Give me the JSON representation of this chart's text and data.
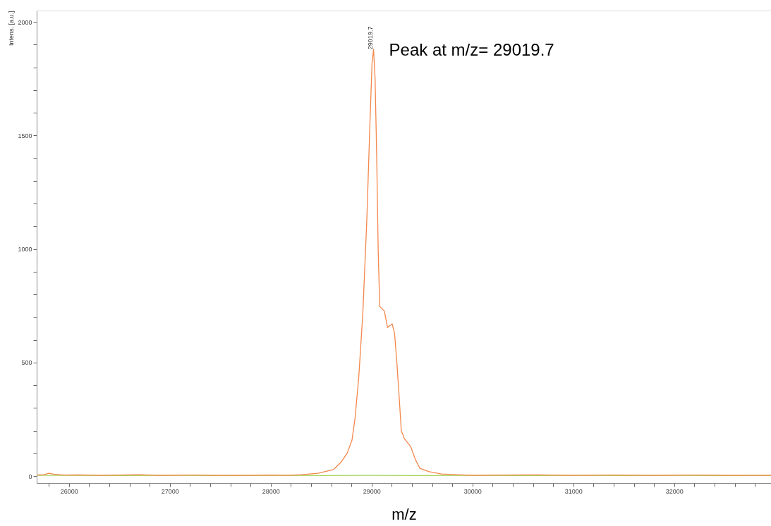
{
  "chart_data": {
    "type": "line",
    "xlabel": "m/z",
    "ylabel": "Intens. [a.u.]",
    "xlim": [
      25680,
      32960
    ],
    "ylim": [
      -31,
      2050
    ],
    "xticks": [
      {
        "value": 25800,
        "label": null
      },
      26000,
      {
        "value": 26200,
        "label": null
      },
      {
        "value": 26400,
        "label": null
      },
      {
        "value": 26600,
        "label": null
      },
      {
        "value": 26800,
        "label": null
      },
      27000,
      {
        "value": 27200,
        "label": null
      },
      {
        "value": 27400,
        "label": null
      },
      {
        "value": 27600,
        "label": null
      },
      {
        "value": 27800,
        "label": null
      },
      28000,
      {
        "value": 28200,
        "label": null
      },
      {
        "value": 28400,
        "label": null
      },
      {
        "value": 28600,
        "label": null
      },
      {
        "value": 28800,
        "label": null
      },
      29000,
      {
        "value": 29200,
        "label": null
      },
      {
        "value": 29400,
        "label": null
      },
      {
        "value": 29600,
        "label": null
      },
      {
        "value": 29800,
        "label": null
      },
      30000,
      {
        "value": 30200,
        "label": null
      },
      {
        "value": 30400,
        "label": null
      },
      {
        "value": 30600,
        "label": null
      },
      {
        "value": 30800,
        "label": null
      },
      31000,
      {
        "value": 31200,
        "label": null
      },
      {
        "value": 31400,
        "label": null
      },
      {
        "value": 31600,
        "label": null
      },
      {
        "value": 31800,
        "label": null
      },
      32000,
      {
        "value": 32200,
        "label": null
      },
      {
        "value": 32400,
        "label": null
      },
      {
        "value": 32600,
        "label": null
      },
      {
        "value": 32800,
        "label": null
      }
    ],
    "yticks": [
      0,
      {
        "value": 100,
        "label": null
      },
      {
        "value": 200,
        "label": null
      },
      {
        "value": 300,
        "label": null
      },
      {
        "value": 400,
        "label": null
      },
      500,
      {
        "value": 600,
        "label": null
      },
      {
        "value": 700,
        "label": null
      },
      {
        "value": 800,
        "label": null
      },
      {
        "value": 900,
        "label": null
      },
      1000,
      {
        "value": 1100,
        "label": null
      },
      {
        "value": 1200,
        "label": null
      },
      {
        "value": 1300,
        "label": null
      },
      {
        "value": 1400,
        "label": null
      },
      1500,
      {
        "value": 1600,
        "label": null
      },
      {
        "value": 1700,
        "label": null
      },
      {
        "value": 1800,
        "label": null
      },
      {
        "value": 1900,
        "label": null
      },
      2000
    ],
    "grid": false,
    "annotations": [
      {
        "text": "29019.7",
        "x": 29019.7,
        "y": 1879
      },
      {
        "text": "Peak at m/z= 29019.7",
        "x": 29019.7,
        "y": 1879
      }
    ],
    "series": [
      {
        "color": "#f4874b",
        "x": [
          25680,
          25750,
          25800,
          25850,
          25950,
          26100,
          26300,
          26500,
          26700,
          26900,
          27200,
          27500,
          27800,
          28000,
          28163,
          28300,
          28469,
          28622,
          28699,
          28760,
          28806,
          28836,
          28873,
          28913,
          28953,
          28983,
          29005,
          29019.7,
          29035,
          29051,
          29066,
          29081,
          29112,
          29127,
          29158,
          29204,
          29228,
          29250,
          29271,
          29295,
          29326,
          29387,
          29433,
          29479,
          29571,
          29693,
          30000,
          30300,
          30600,
          31000,
          31400,
          31800,
          32200,
          32600,
          32960
        ],
        "values": [
          4,
          6,
          12,
          8,
          4,
          5,
          3,
          4,
          6,
          3,
          4,
          3,
          3,
          4,
          3,
          6,
          12,
          28,
          62,
          102,
          158,
          254,
          434,
          713,
          1129,
          1541,
          1820,
          1879,
          1749,
          1405,
          989,
          747,
          733,
          726,
          654,
          670,
          629,
          505,
          366,
          199,
          164,
          130,
          74,
          34,
          19,
          9,
          3,
          4,
          5,
          3,
          4,
          3,
          4,
          3,
          3
        ]
      },
      {
        "color": "#a6d45a",
        "x": [
          25680,
          26000,
          26500,
          27000,
          27500,
          28000,
          28500,
          29000,
          29500,
          30000,
          30500,
          31000,
          31500,
          32000,
          32500,
          32960
        ],
        "values": [
          3,
          3,
          2,
          3,
          2,
          3,
          2,
          3,
          2,
          3,
          2,
          3,
          2,
          3,
          2,
          3
        ]
      }
    ]
  }
}
